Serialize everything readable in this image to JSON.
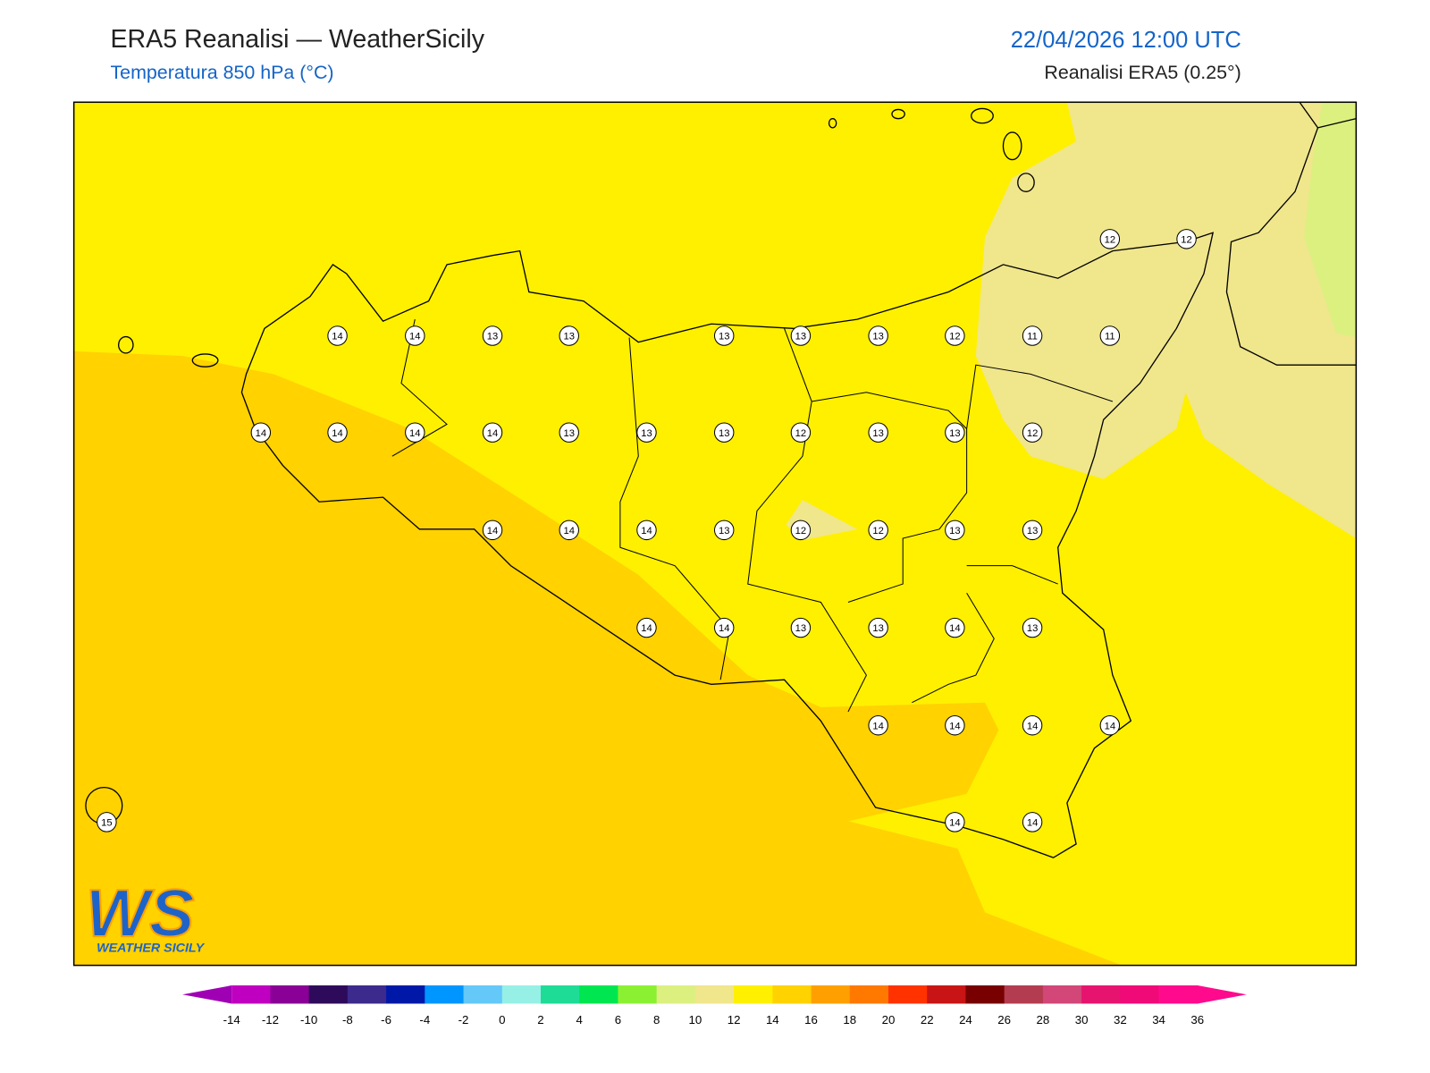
{
  "header": {
    "title": "ERA5 Reanalisi — WeatherSicily",
    "subtitle": "Temperatura 850 hPa (°C)",
    "datetime": "22/04/2026 12:00 UTC",
    "source": "Reanalisi ERA5 (0.25°)"
  },
  "stations": [
    12,
    12,
    14,
    14,
    13,
    13,
    13,
    13,
    13,
    12,
    11,
    11,
    14,
    14,
    14,
    14,
    13,
    13,
    13,
    12,
    13,
    13,
    12,
    14,
    14,
    14,
    13,
    12,
    12,
    13,
    13,
    14,
    14,
    13,
    13,
    14,
    13,
    14,
    14,
    14,
    14,
    15,
    14,
    14
  ],
  "colorbar": {
    "ticks": [
      -14,
      -12,
      -10,
      -8,
      -6,
      -4,
      -2,
      0,
      2,
      4,
      6,
      8,
      10,
      12,
      14,
      16,
      18,
      20,
      22,
      24,
      26,
      28,
      30,
      32,
      34,
      36
    ],
    "colors": [
      "#c000c0",
      "#8a0096",
      "#2e0a5a",
      "#3c2a8c",
      "#0018a8",
      "#0096ff",
      "#64c8f8",
      "#96f0e6",
      "#1edc96",
      "#00e650",
      "#8cf032",
      "#dcf080",
      "#f0e68c",
      "#fff000",
      "#ffd200",
      "#ffa000",
      "#ff7800",
      "#ff3200",
      "#c81414",
      "#780000",
      "#b43c50",
      "#d24678",
      "#e6146e",
      "#f00a78",
      "#ff0a8c"
    ],
    "under": "#a000b4",
    "over": "#ff0a8c"
  },
  "logo": {
    "mark": "WS",
    "name": "WEATHER SICILY"
  }
}
